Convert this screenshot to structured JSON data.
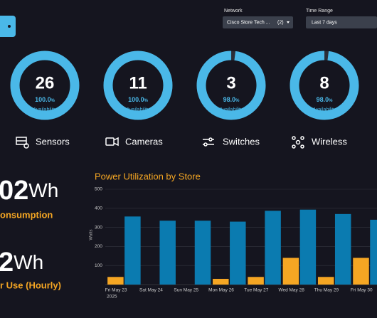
{
  "filters": [
    {
      "label": "Network",
      "value": "Cisco Store Tech ...",
      "count": "(2)"
    },
    {
      "label": "Time Range",
      "value": "Last 7 days"
    }
  ],
  "tiles": [
    {
      "count": 26,
      "availability": {
        "value": 100,
        "label": "100.0"
      },
      "unit": "%",
      "caption": "Availability",
      "name": "Sensors"
    },
    {
      "count": 11,
      "availability": {
        "value": 100,
        "label": "100.0"
      },
      "unit": "%",
      "caption": "Availability",
      "name": "Cameras"
    },
    {
      "count": 3,
      "availability": {
        "value": 98,
        "label": "98.0"
      },
      "unit": "%",
      "caption": "Availability",
      "name": "Switches"
    },
    {
      "count": 8,
      "availability": {
        "value": 98,
        "label": "98.0"
      },
      "unit": "%",
      "caption": "Availability",
      "name": "Wireless"
    }
  ],
  "stats": [
    {
      "value": "02",
      "unit": "Wh",
      "label": "onsumption"
    },
    {
      "value": "2",
      "unit": "Wh",
      "label": "r Use (Hourly)"
    }
  ],
  "chart_data": {
    "type": "bar",
    "title": "Power Utilization by Store",
    "ylabel": "Watts",
    "categories": [
      "Fri May 23",
      "Sat May 24",
      "Sun May 25",
      "Mon May 26",
      "Tue May 27",
      "Wed May 28",
      "Thu May 29",
      "Fri May 30"
    ],
    "category_sublabel": "2025",
    "series": [
      {
        "color": "#f5a623",
        "values": [
          40,
          0,
          0,
          30,
          40,
          140,
          40,
          140
        ]
      },
      {
        "color": "#0b7bb0",
        "values": [
          357,
          335,
          335,
          330,
          387,
          393,
          370,
          340
        ]
      }
    ],
    "ylim": [
      0,
      500
    ],
    "yticks": [
      100,
      200,
      300,
      400,
      500
    ],
    "grid": true
  }
}
